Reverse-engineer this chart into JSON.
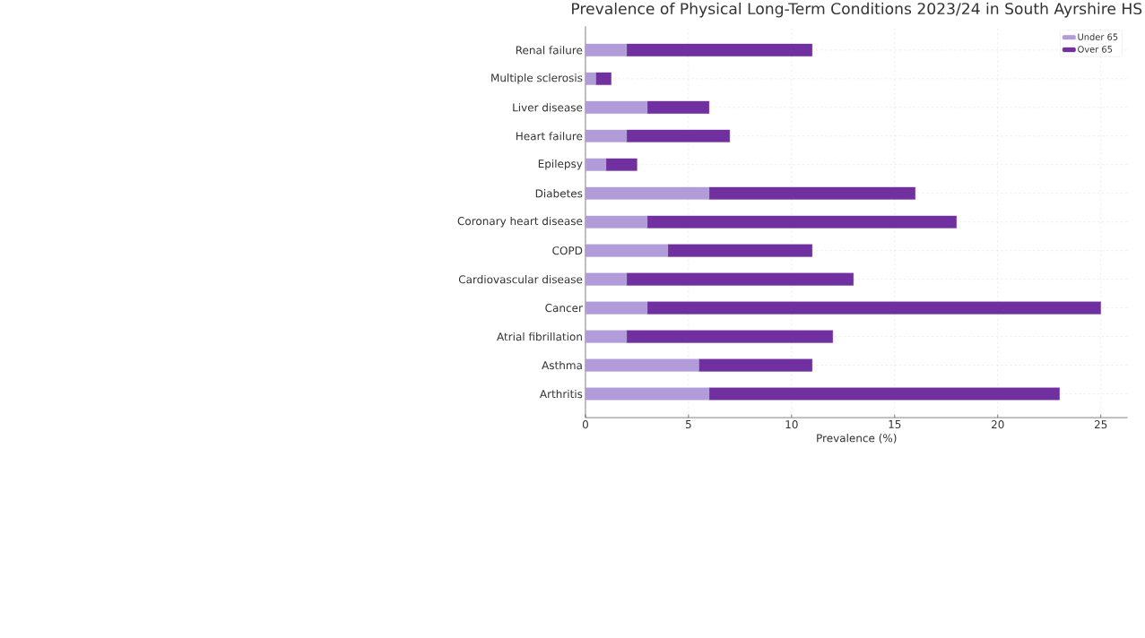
{
  "chart_data": {
    "type": "bar",
    "orientation": "horizontal",
    "stacked": true,
    "title": "Prevalence of Physical Long-Term Conditions 2023/24 in South Ayrshire HS",
    "xlabel": "Prevalence (%)",
    "categories": [
      "Renal failure",
      "Multiple sclerosis",
      "Liver disease",
      "Heart failure",
      "Epilepsy",
      "Diabetes",
      "Coronary heart disease",
      "COPD",
      "Cardiovascular disease",
      "Cancer",
      "Atrial fibrillation",
      "Asthma",
      "Arthritis"
    ],
    "series": [
      {
        "name": "Under 65",
        "color": "#b19cd9",
        "values": [
          2,
          0.5,
          3,
          2,
          1,
          6,
          3,
          4,
          2,
          3,
          2,
          5.5,
          6
        ]
      },
      {
        "name": "Over 65",
        "color": "#7030a0",
        "values": [
          9,
          0.75,
          3,
          5,
          1.5,
          10,
          15,
          7,
          11,
          22,
          10,
          5.5,
          17
        ]
      }
    ],
    "xlim": [
      0,
      26.3
    ],
    "xticks": [
      0,
      5,
      10,
      15,
      20,
      25
    ],
    "grid": true,
    "legend": "top right"
  }
}
